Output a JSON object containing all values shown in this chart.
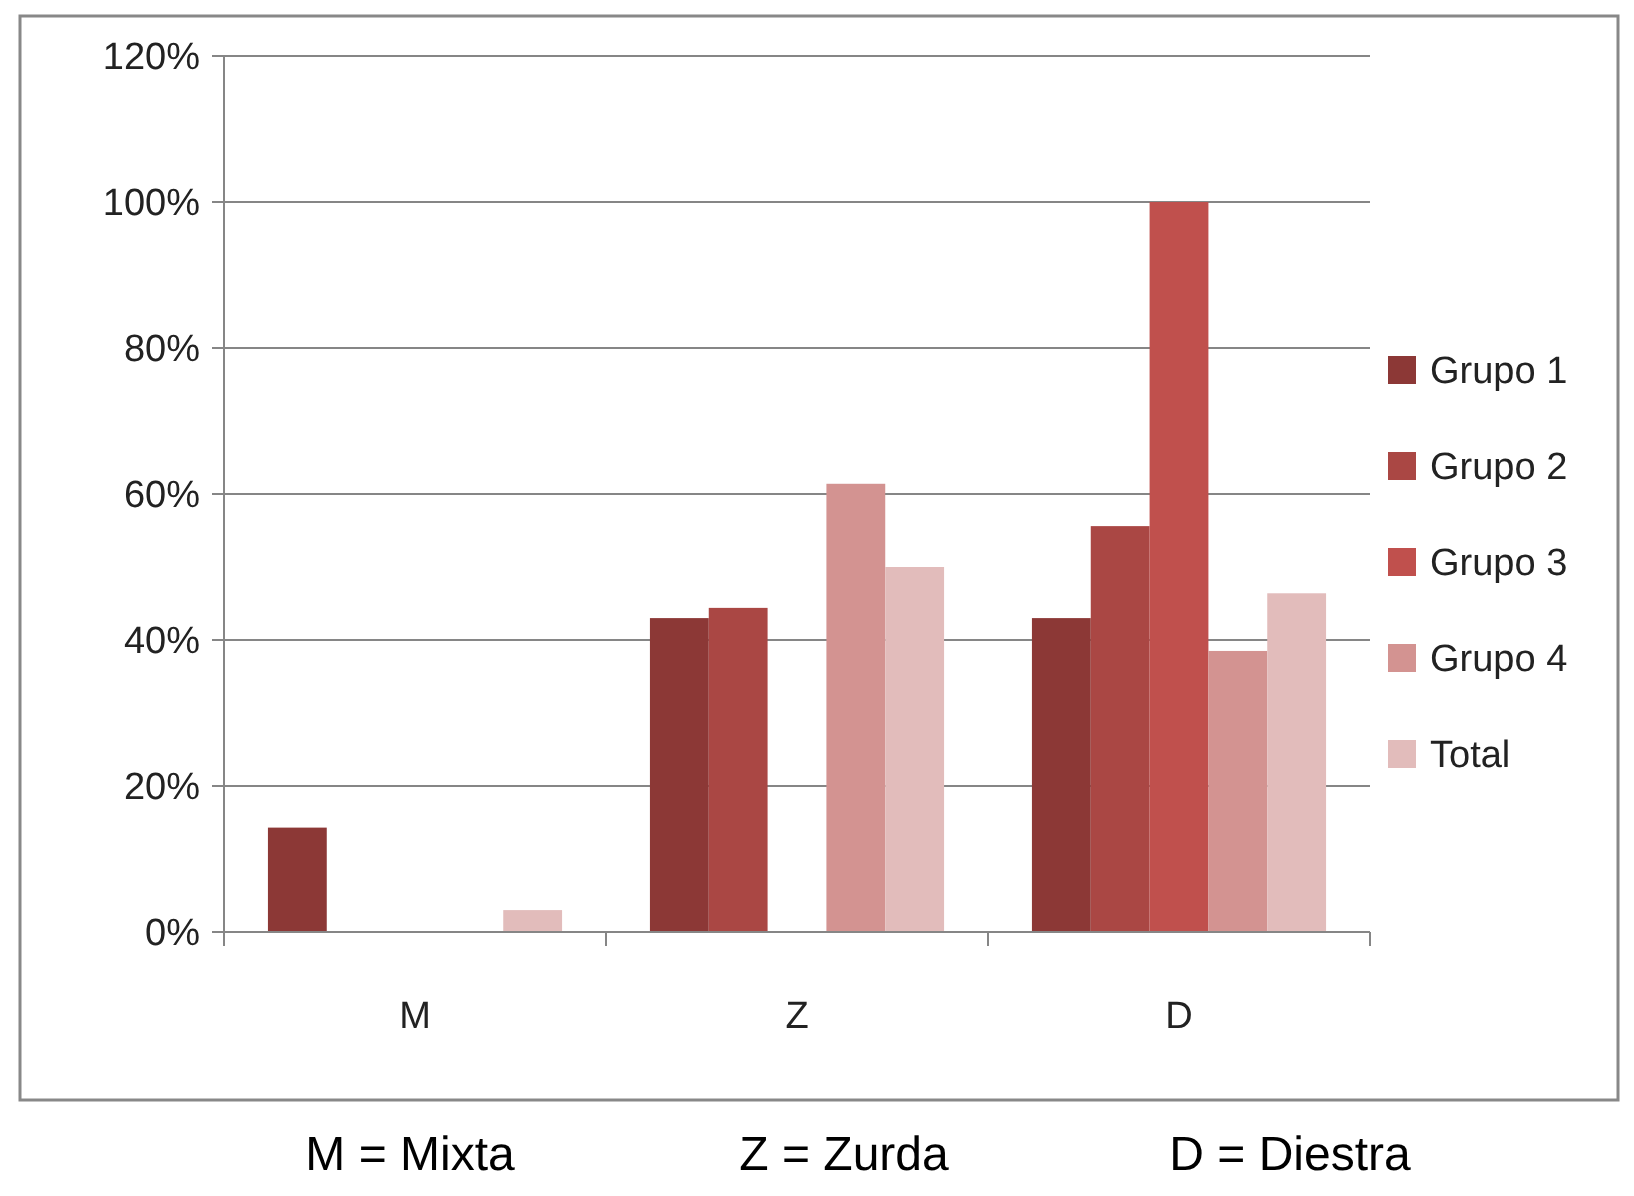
{
  "chart_data": {
    "type": "bar",
    "categories": [
      "M",
      "Z",
      "D"
    ],
    "series": [
      {
        "name": "Grupo 1",
        "color": "#8c3836",
        "values": [
          14.3,
          43,
          43
        ]
      },
      {
        "name": "Grupo 2",
        "color": "#aa4744",
        "values": [
          0,
          44.4,
          55.6
        ]
      },
      {
        "name": "Grupo 3",
        "color": "#c0504d",
        "values": [
          0,
          0,
          100
        ]
      },
      {
        "name": "Grupo 4",
        "color": "#d39391",
        "values": [
          0,
          61.4,
          38.5
        ]
      },
      {
        "name": "Total",
        "color": "#e2bcbb",
        "values": [
          3,
          50,
          46.4
        ]
      }
    ],
    "ylim": [
      0,
      120
    ],
    "yticks": [
      {
        "value": 0,
        "label": "0%"
      },
      {
        "value": 20,
        "label": "20%"
      },
      {
        "value": 40,
        "label": "40%"
      },
      {
        "value": 60,
        "label": "60%"
      },
      {
        "value": 80,
        "label": "80%"
      },
      {
        "value": 100,
        "label": "100%"
      },
      {
        "value": 120,
        "label": "120%"
      }
    ],
    "grid": "y",
    "legend": "right",
    "annotations": [
      "M = Mixta",
      "Z = Zurda",
      "D = Diestra"
    ]
  }
}
